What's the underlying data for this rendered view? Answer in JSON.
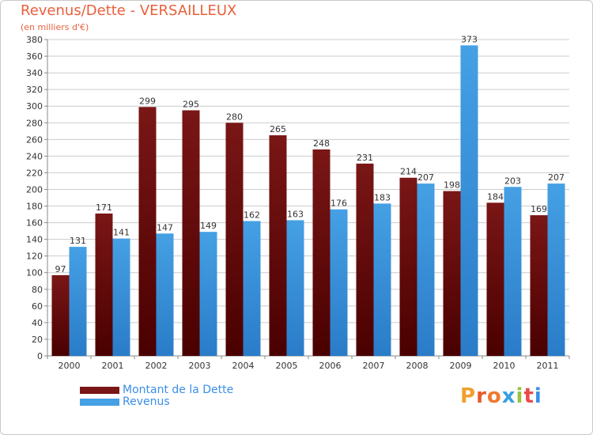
{
  "title": "Revenus/Dette - VERSAILLEUX",
  "subtitle": "(en milliers d'€)",
  "logo": {
    "text": "Proxiti",
    "letter_colors": [
      "#f0a030",
      "#e85a2a",
      "#f07830",
      "#3aa0e0",
      "#9ac23c",
      "#e84a4a",
      "#3a8ee8"
    ]
  },
  "colors": {
    "dette": "#7a1616",
    "revenus": "#45a0e4",
    "grid": "#cccccc",
    "axis_text": "#333333",
    "title": "#e8603c",
    "legend_text": "#3a8ee8"
  },
  "chart_data": {
    "type": "bar",
    "title": "Revenus/Dette - VERSAILLEUX",
    "subtitle": "(en milliers d'€)",
    "categories": [
      "2000",
      "2001",
      "2002",
      "2003",
      "2004",
      "2005",
      "2006",
      "2007",
      "2008",
      "2009",
      "2010",
      "2011"
    ],
    "series": [
      {
        "name": "Montant de la Dette",
        "color": "#7a1616",
        "values": [
          97,
          171,
          299,
          295,
          280,
          265,
          248,
          231,
          214,
          198,
          184,
          169
        ]
      },
      {
        "name": "Revenus",
        "color": "#45a0e4",
        "values": [
          131,
          141,
          147,
          149,
          162,
          163,
          176,
          183,
          207,
          373,
          203,
          207
        ]
      }
    ],
    "ylim": [
      0,
      380
    ],
    "ytick_step": 20,
    "grid": true,
    "legend_position": "bottom-left",
    "data_labels": true
  }
}
